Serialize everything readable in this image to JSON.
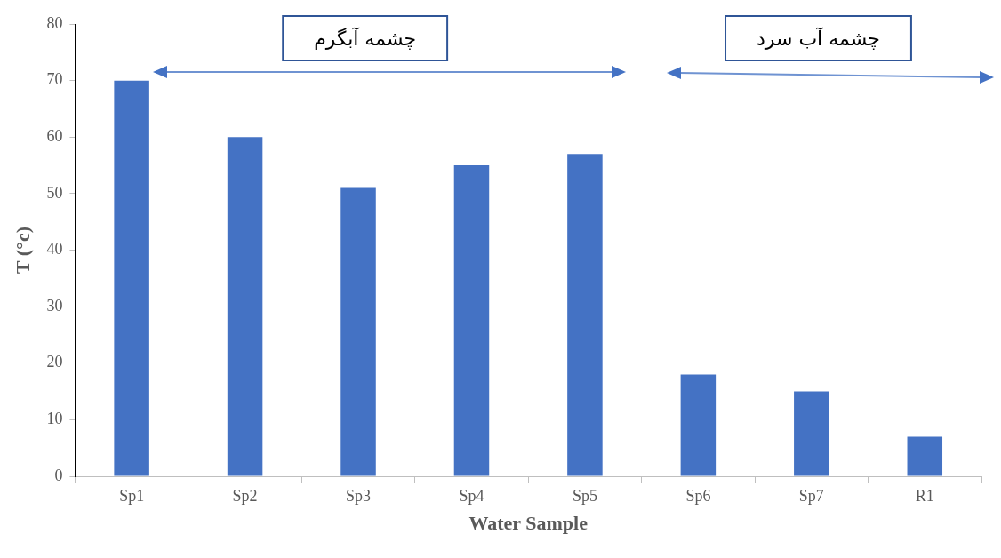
{
  "chart_data": {
    "type": "bar",
    "xlabel": "Water Sample",
    "ylabel": "T (°c)",
    "categories": [
      "Sp1",
      "Sp2",
      "Sp3",
      "Sp4",
      "Sp5",
      "Sp6",
      "Sp7",
      "R1"
    ],
    "values": [
      70,
      60,
      51,
      55,
      57,
      18,
      15,
      7
    ],
    "color": "#4472c4",
    "ylim": [
      0,
      80
    ],
    "yticks": [
      0,
      10,
      20,
      30,
      40,
      50,
      60,
      70,
      80
    ],
    "grid": false,
    "legend": false,
    "annotations": [
      "چشمه آبگرم",
      "چشمه آب سرد"
    ]
  }
}
